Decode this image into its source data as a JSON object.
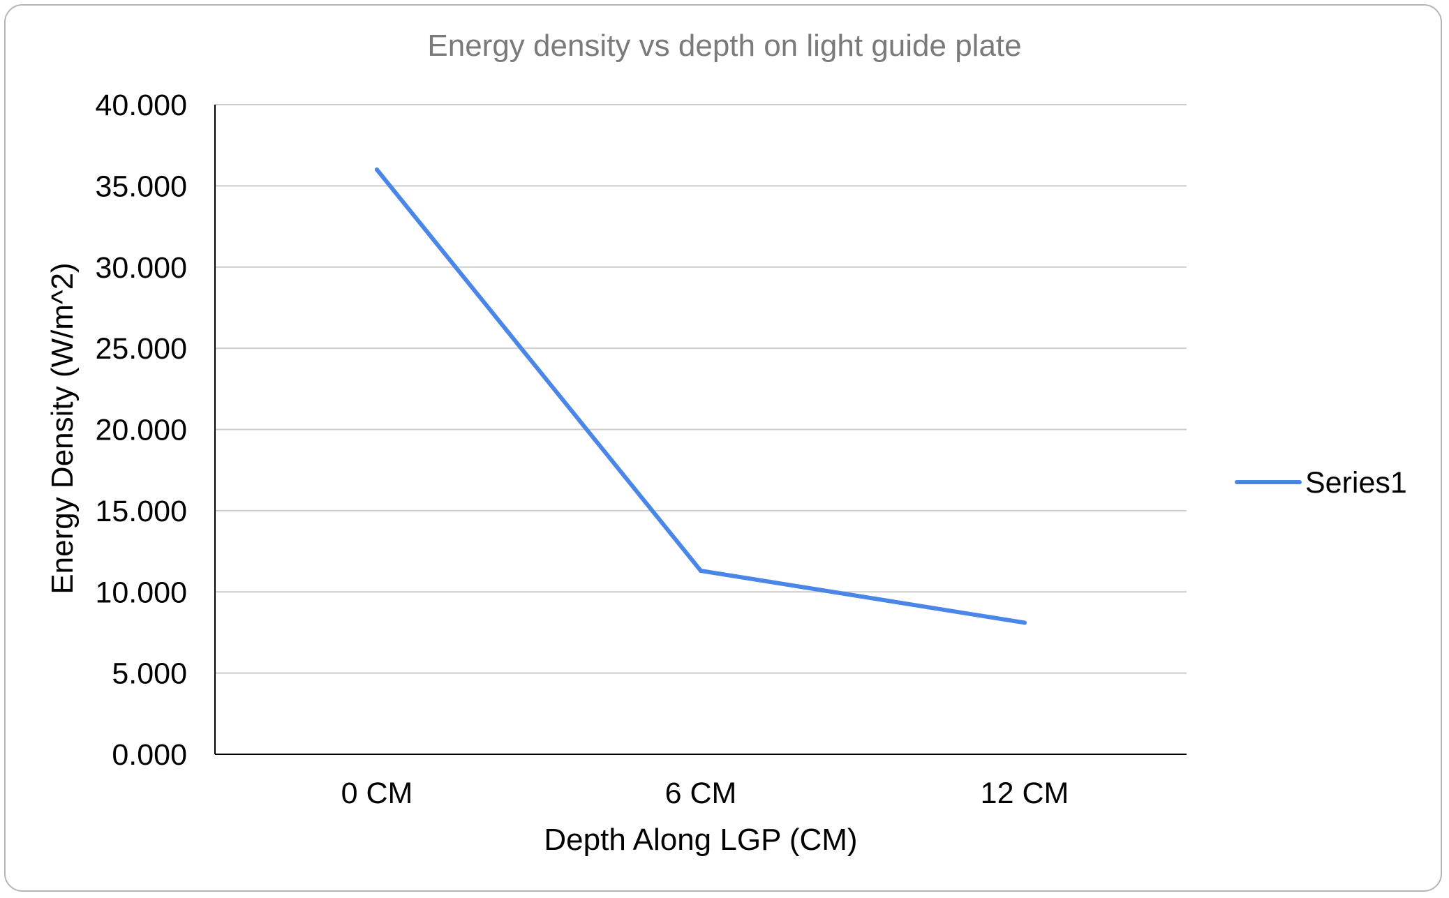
{
  "chart_data": {
    "type": "line",
    "title": "Energy density vs depth on light guide plate",
    "xlabel": "Depth Along LGP (CM)",
    "ylabel": "Energy Density (W/m^2)",
    "categories": [
      "0 CM",
      "6 CM",
      "12 CM"
    ],
    "series": [
      {
        "name": "Series1",
        "values": [
          36.0,
          11.3,
          8.1
        ],
        "color": "#4a86e8"
      }
    ],
    "ylim": [
      0,
      40
    ],
    "yticks": [
      "0.000",
      "5.000",
      "10.000",
      "15.000",
      "20.000",
      "25.000",
      "30.000",
      "35.000",
      "40.000"
    ],
    "grid": true,
    "legend_position": "right",
    "colors": {
      "gridline": "#cccccc",
      "axis": "#000000",
      "title": "#7a7a7a"
    }
  }
}
